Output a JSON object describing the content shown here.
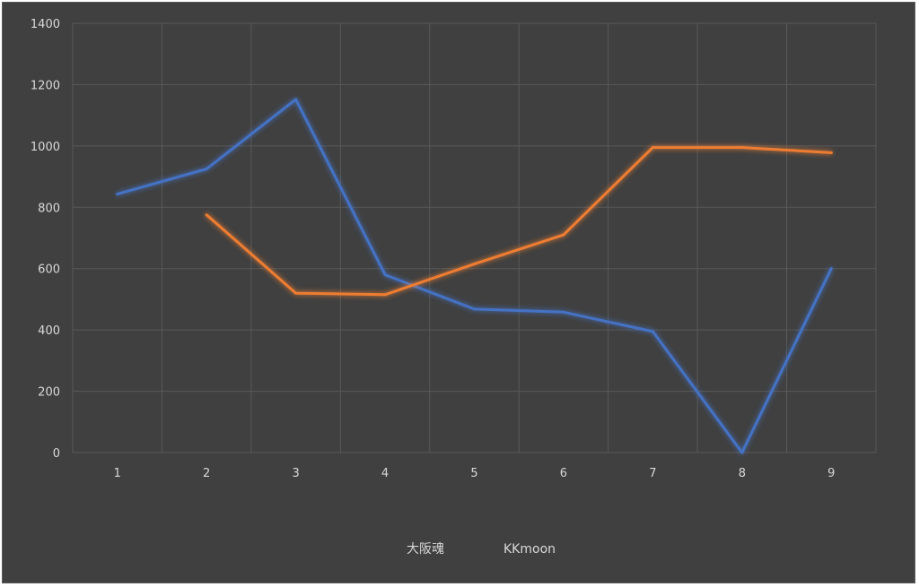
{
  "colors": {
    "background": "#404040",
    "gridline": "#595959",
    "tick_text": "#d9d9d9"
  },
  "chart_data": {
    "type": "line",
    "x": [
      1,
      2,
      3,
      4,
      5,
      6,
      7,
      8,
      9
    ],
    "ylim": [
      0,
      1400
    ],
    "yticks": [
      0,
      200,
      400,
      600,
      800,
      1000,
      1200,
      1400
    ],
    "grid": true,
    "legend_position": "bottom",
    "series": [
      {
        "name": "大阪魂",
        "color": "#4472c4",
        "values": [
          843,
          925,
          1152,
          580,
          468,
          458,
          395,
          0,
          600
        ]
      },
      {
        "name": "KKmoon",
        "color": "#ed7d31",
        "values": [
          null,
          775,
          520,
          515,
          615,
          710,
          995,
          995,
          978
        ]
      }
    ]
  }
}
